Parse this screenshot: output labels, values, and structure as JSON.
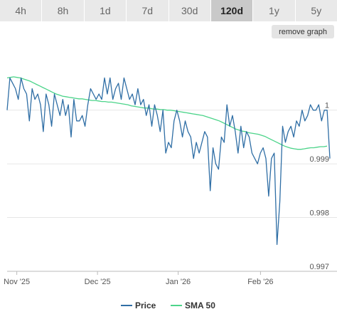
{
  "timeframe_tabs": [
    {
      "label": "4h",
      "active": false
    },
    {
      "label": "8h",
      "active": false
    },
    {
      "label": "1d",
      "active": false
    },
    {
      "label": "7d",
      "active": false
    },
    {
      "label": "30d",
      "active": false
    },
    {
      "label": "120d",
      "active": true
    },
    {
      "label": "1y",
      "active": false
    },
    {
      "label": "5y",
      "active": false
    }
  ],
  "remove_graph_label": "remove graph",
  "colors": {
    "price": "#2f6ea5",
    "sma": "#4cd48a",
    "gridline": "#e6e6e6",
    "axis": "#bbbbbb"
  },
  "chart_data": {
    "type": "line",
    "x_tick_labels": [
      "Nov '25",
      "Dec '25",
      "Jan '26",
      "Feb '26"
    ],
    "y_tick_labels": [
      "1",
      "0.999",
      "0.998",
      "0.997"
    ],
    "y_ticks": [
      1.0,
      0.999,
      0.998,
      0.997
    ],
    "ylim": [
      0.997,
      1.00095
    ],
    "legend": {
      "placement": "bottom-center"
    },
    "series": [
      {
        "name": "Price",
        "values": [
          1.0,
          1.0006,
          1.0005,
          1.0004,
          1.0002,
          1.0006,
          1.0004,
          1.0003,
          0.9998,
          1.0004,
          1.0002,
          1.0003,
          1.0001,
          0.9996,
          1.0003,
          1.0001,
          0.9997,
          1.0003,
          1.0001,
          0.9999,
          1.0002,
          0.9999,
          1.0001,
          0.9995,
          1.0002,
          0.9998,
          0.9998,
          0.9999,
          0.9997,
          1.0001,
          1.0004,
          1.0003,
          1.0002,
          1.0003,
          1.0002,
          1.0006,
          1.0003,
          1.0006,
          1.0002,
          1.0004,
          1.0005,
          1.0002,
          1.0006,
          1.0004,
          1.0002,
          1.0003,
          1.0001,
          1.0004,
          1.0001,
          1.0002,
          0.9999,
          1.0001,
          0.9997,
          1.0001,
          0.9999,
          0.9996,
          1.0,
          0.9992,
          0.9994,
          0.9993,
          0.9998,
          1.0,
          0.9998,
          0.9995,
          0.9998,
          0.9996,
          0.9995,
          0.9991,
          0.9994,
          0.9992,
          0.9994,
          0.9996,
          0.9995,
          0.9985,
          0.9993,
          0.999,
          0.9989,
          0.9995,
          0.9994,
          1.0001,
          0.9997,
          0.9999,
          0.9996,
          0.9992,
          0.9997,
          0.9993,
          0.9996,
          0.9995,
          0.9992,
          0.9991,
          0.999,
          0.9992,
          0.9993,
          0.9991,
          0.9984,
          0.9991,
          0.9992,
          0.9975,
          0.9983,
          0.9997,
          0.9994,
          0.9996,
          0.9997,
          0.9995,
          0.9998,
          0.9997,
          1.0,
          0.9998,
          0.9999,
          1.0001,
          1.0,
          1.0,
          1.0001,
          0.9998,
          1.0,
          1.0,
          0.9991
        ]
      },
      {
        "name": "SMA 50",
        "values": [
          1.0006,
          1.00061,
          1.00062,
          1.00061,
          1.0006,
          1.00058,
          1.00056,
          1.00054,
          1.00051,
          1.00048,
          1.00045,
          1.00042,
          1.00039,
          1.00036,
          1.00033,
          1.0003,
          1.00028,
          1.00026,
          1.00025,
          1.00024,
          1.00023,
          1.00022,
          1.00021,
          1.00021,
          1.0002,
          1.00019,
          1.00018,
          1.00018,
          1.00017,
          1.00016,
          1.00016,
          1.00015,
          1.00015,
          1.00014,
          1.00013,
          1.00012,
          1.00011,
          1.0001,
          1.00008,
          1.00007,
          1.00006,
          1.00005,
          1.00004,
          1.00004,
          1.00003,
          1.00002,
          1.00002,
          1.00001,
          1.00001,
          1.0,
          1.0,
          0.99999,
          0.99998,
          0.99997,
          0.99996,
          0.99995,
          0.99994,
          0.99993,
          0.99992,
          0.99991,
          0.9999,
          0.99988,
          0.99986,
          0.99984,
          0.99982,
          0.9998,
          0.99977,
          0.99974,
          0.99971,
          0.99968,
          0.99965,
          0.99963,
          0.99961,
          0.9996,
          0.99958,
          0.99957,
          0.99956,
          0.99955,
          0.99953,
          0.99951,
          0.99948,
          0.99945,
          0.99942,
          0.99939,
          0.99936,
          0.99933,
          0.99931,
          0.99929,
          0.99928,
          0.99927,
          0.99927,
          0.99928,
          0.99929,
          0.9993,
          0.9993,
          0.99931,
          0.99932,
          0.99932,
          0.99933
        ]
      }
    ]
  }
}
